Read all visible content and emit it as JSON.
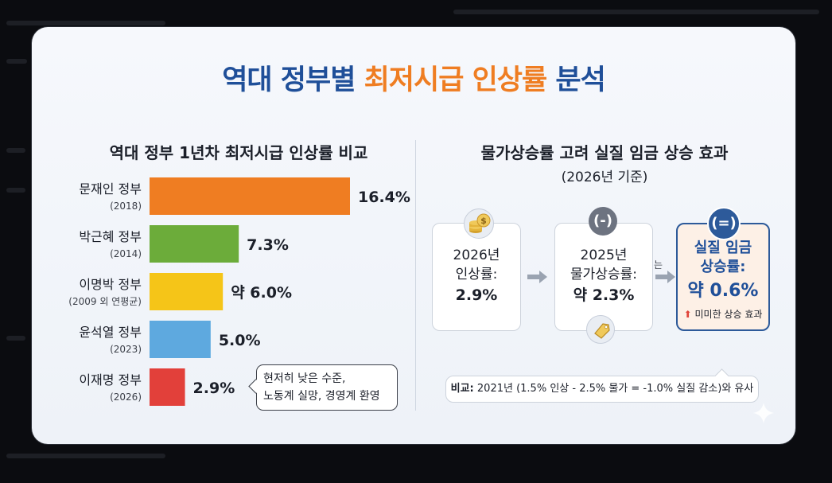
{
  "title": {
    "part1": "역대 정부별",
    "part2": "최저시급 인상률",
    "part3": "분석"
  },
  "left_panel": {
    "heading": "역대 정부 1년차 최저시급 인상률 비교",
    "note": {
      "line1": "현저히 낮은 수준,",
      "line2": "노동계 실망, 경영계 환영"
    }
  },
  "chart_data": {
    "type": "bar",
    "orientation": "horizontal",
    "title": "역대 정부 1년차 최저시급 인상률 비교",
    "categories": [
      {
        "name": "문재인 정부",
        "year": "(2018)"
      },
      {
        "name": "박근혜 정부",
        "year": "(2014)"
      },
      {
        "name": "이명박 정부",
        "year": "(2009 외 연평균)"
      },
      {
        "name": "윤석열 정부",
        "year": "(2023)"
      },
      {
        "name": "이재명 정부",
        "year": "(2026)"
      }
    ],
    "values": [
      16.4,
      7.3,
      6.0,
      5.0,
      2.9
    ],
    "value_labels": [
      "16.4%",
      "7.3%",
      "약 6.0%",
      "5.0%",
      "2.9%"
    ],
    "colors": [
      "#ef7d22",
      "#6cac3a",
      "#f5c518",
      "#5ea9df",
      "#e2403a"
    ],
    "xlim": [
      0,
      16.4
    ],
    "grid": false,
    "xlabel": "",
    "ylabel": ""
  },
  "right_panel": {
    "heading": "물가상승률 고려 실질 임금 상승 효과",
    "subheading": "(2026년 기준)",
    "box1": {
      "line1": "2026년",
      "line2": "인상률:",
      "value": "2.9%",
      "icon": "coin-stack-icon"
    },
    "box2": {
      "line1": "2025년",
      "line2": "물가상승률:",
      "value": "약 2.3%",
      "badge": "(-)",
      "icon": "price-tag-icon"
    },
    "connector": "는",
    "box3": {
      "line1": "실질 임금",
      "line2": "상승률:",
      "value": "약 0.6%",
      "badge": "(=)",
      "note": "미미한 상승 효과"
    },
    "compare": {
      "prefix": "비교:",
      "text": "2021년 (1.5% 인상 - 2.5% 물가 = -1.0% 실질 감소)와 유사"
    }
  }
}
